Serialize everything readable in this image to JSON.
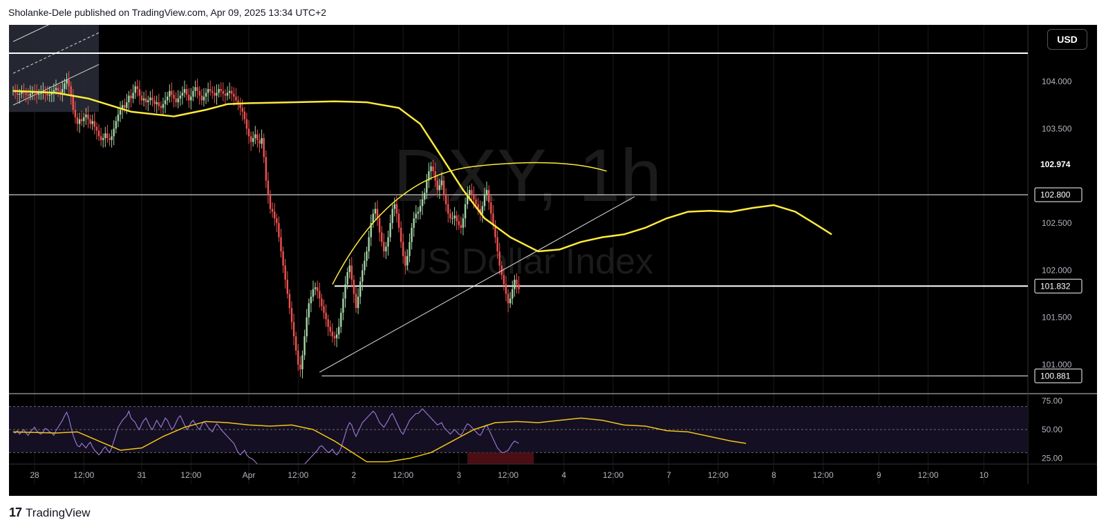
{
  "header": {
    "publisher_line": "Sholanke-Dele published on TradingView.com, Apr 09, 2025 13:34 UTC+2"
  },
  "currency_button": "USD",
  "watermark": {
    "symbol": "DXY, 1h",
    "name": "US Dollar Index"
  },
  "footer": {
    "logo_text": "TradingView"
  },
  "colors": {
    "background": "#000000",
    "candle_up": "#a5d6a7",
    "candle_down": "#ef5350",
    "moving_average": "#ffeb3b",
    "rsi_line": "#9575cd",
    "rsi_ma": "#f5c518",
    "level_line": "#ffffff"
  },
  "chart_data": [
    {
      "type": "candlestick",
      "symbol": "DXY",
      "interval": "1h",
      "y_ticks": [
        "104.000",
        "103.500",
        "102.500",
        "102.000",
        "101.500",
        "101.000"
      ],
      "y_range": [
        100.7,
        104.6
      ],
      "x_ticks": [
        {
          "label": "28",
          "index": 10
        },
        {
          "label": "12:00",
          "index": 33
        },
        {
          "label": "31",
          "index": 60
        },
        {
          "label": "12:00",
          "index": 83
        },
        {
          "label": "Apr",
          "index": 110
        },
        {
          "label": "12:00",
          "index": 133
        },
        {
          "label": "2",
          "index": 159
        },
        {
          "label": "12:00",
          "index": 182
        },
        {
          "label": "3",
          "index": 208
        },
        {
          "label": "12:00",
          "index": 231
        },
        {
          "label": "4",
          "index": 257
        },
        {
          "label": "12:00",
          "index": 280
        },
        {
          "label": "7",
          "index": 306
        },
        {
          "label": "12:00",
          "index": 329
        },
        {
          "label": "8",
          "index": 355
        },
        {
          "label": "12:00",
          "index": 378
        },
        {
          "label": "9",
          "index": 404
        },
        {
          "label": "12:00",
          "index": 427
        },
        {
          "label": "10",
          "index": 453
        }
      ],
      "price_labels": [
        {
          "value": 102.974,
          "text": "102.974",
          "boxed": false
        },
        {
          "value": 102.8,
          "text": "102.800",
          "boxed": true
        },
        {
          "value": 101.832,
          "text": "101.832",
          "boxed": true
        },
        {
          "value": 100.881,
          "text": "100.881",
          "boxed": true
        }
      ],
      "horizontal_levels": [
        104.3,
        102.8,
        101.832,
        100.881
      ],
      "close_series": [
        103.9,
        103.88,
        103.86,
        103.87,
        103.89,
        103.88,
        103.86,
        103.85,
        103.87,
        103.9,
        103.88,
        103.86,
        103.87,
        103.89,
        103.9,
        103.88,
        103.85,
        103.86,
        103.88,
        103.91,
        103.93,
        103.9,
        103.88,
        103.92,
        103.98,
        104.02,
        103.95,
        103.85,
        103.7,
        103.62,
        103.55,
        103.6,
        103.58,
        103.62,
        103.65,
        103.6,
        103.55,
        103.58,
        103.52,
        103.48,
        103.42,
        103.38,
        103.4,
        103.45,
        103.4,
        103.38,
        103.42,
        103.5,
        103.58,
        103.65,
        103.7,
        103.75,
        103.72,
        103.78,
        103.85,
        103.82,
        103.88,
        103.95,
        103.92,
        103.85,
        103.8,
        103.82,
        103.78,
        103.8,
        103.83,
        103.8,
        103.76,
        103.78,
        103.74,
        103.72,
        103.76,
        103.8,
        103.84,
        103.9,
        103.86,
        103.82,
        103.78,
        103.82,
        103.85,
        103.88,
        103.92,
        103.86,
        103.8,
        103.84,
        103.9,
        103.94,
        103.9,
        103.85,
        103.8,
        103.84,
        103.88,
        103.92,
        103.9,
        103.88,
        103.85,
        103.88,
        103.92,
        103.9,
        103.87,
        103.85,
        103.88,
        103.9,
        103.87,
        103.84,
        103.8,
        103.76,
        103.72,
        103.68,
        103.6,
        103.5,
        103.42,
        103.36,
        103.4,
        103.44,
        103.38,
        103.34,
        103.4,
        103.2,
        102.95,
        102.8,
        102.65,
        102.62,
        102.55,
        102.5,
        102.35,
        102.2,
        102.05,
        101.9,
        101.75,
        101.6,
        101.45,
        101.3,
        101.15,
        101.0,
        100.95,
        101.1,
        101.3,
        101.5,
        101.65,
        101.72,
        101.8,
        101.82,
        101.78,
        101.7,
        101.62,
        101.55,
        101.48,
        101.4,
        101.35,
        101.3,
        101.28,
        101.32,
        101.4,
        101.55,
        101.7,
        101.85,
        101.98,
        102.05,
        101.9,
        101.75,
        101.6,
        101.72,
        101.88,
        102.0,
        102.1,
        102.2,
        102.35,
        102.5,
        102.6,
        102.65,
        102.55,
        102.4,
        102.3,
        102.2,
        102.25,
        102.35,
        102.5,
        102.65,
        102.7,
        102.6,
        102.45,
        102.3,
        102.15,
        102.05,
        102.15,
        102.3,
        102.45,
        102.55,
        102.6,
        102.62,
        102.68,
        102.75,
        102.82,
        102.95,
        103.05,
        103.1,
        103.05,
        102.95,
        102.85,
        102.9,
        102.95,
        102.8,
        102.7,
        102.6,
        102.55,
        102.55,
        102.58,
        102.52,
        102.48,
        102.45,
        102.55,
        102.7,
        102.8,
        102.85,
        102.8,
        102.75,
        102.7,
        102.65,
        102.6,
        102.68,
        102.8,
        102.85,
        102.72,
        102.6,
        102.48,
        102.35,
        102.2,
        102.05,
        101.95,
        101.85,
        101.75,
        101.65,
        101.7,
        101.8,
        101.9,
        101.85,
        101.8
      ],
      "moving_average": {
        "name": "MA",
        "points": [
          [
            0,
            103.9
          ],
          [
            20,
            103.88
          ],
          [
            35,
            103.82
          ],
          [
            55,
            103.68
          ],
          [
            75,
            103.63
          ],
          [
            90,
            103.7
          ],
          [
            100,
            103.76
          ],
          [
            110,
            103.77
          ],
          [
            130,
            103.78
          ],
          [
            150,
            103.79
          ],
          [
            165,
            103.78
          ],
          [
            180,
            103.72
          ],
          [
            190,
            103.55
          ],
          [
            200,
            103.2
          ],
          [
            210,
            102.85
          ],
          [
            220,
            102.55
          ],
          [
            232,
            102.35
          ],
          [
            245,
            102.2
          ],
          [
            255,
            102.22
          ],
          [
            265,
            102.3
          ],
          [
            275,
            102.35
          ],
          [
            285,
            102.38
          ],
          [
            295,
            102.45
          ],
          [
            305,
            102.55
          ],
          [
            315,
            102.62
          ],
          [
            325,
            102.63
          ],
          [
            335,
            102.62
          ],
          [
            345,
            102.66
          ],
          [
            355,
            102.69
          ],
          [
            365,
            102.62
          ],
          [
            375,
            102.48
          ],
          [
            382,
            102.38
          ]
        ]
      },
      "annotations": {
        "arc": [
          [
            149,
            101.85
          ],
          [
            175,
            102.65
          ],
          [
            215,
            103.1
          ],
          [
            250,
            103.18
          ],
          [
            277,
            103.05
          ]
        ],
        "trendline": [
          [
            143,
            100.92
          ],
          [
            290,
            102.78
          ]
        ],
        "top_left_channel": [
          [
            0,
            103.75
          ],
          [
            40,
            104.18
          ]
        ]
      }
    },
    {
      "type": "line",
      "indicator": "RSI",
      "y_ticks": [
        "75.00",
        "50.00",
        "25.00"
      ],
      "y_range": [
        20,
        80
      ],
      "bands": [
        70,
        50,
        30
      ],
      "rsi_values": [
        48,
        47,
        49,
        46,
        48,
        50,
        47,
        45,
        48,
        50,
        52,
        49,
        47,
        46,
        48,
        51,
        50,
        48,
        47,
        45,
        49,
        52,
        55,
        58,
        62,
        65,
        60,
        52,
        45,
        40,
        36,
        35,
        38,
        36,
        34,
        37,
        39,
        35,
        32,
        30,
        28,
        30,
        33,
        35,
        32,
        30,
        34,
        40,
        46,
        52,
        55,
        58,
        60,
        62,
        66,
        60,
        58,
        56,
        52,
        50,
        55,
        58,
        60,
        56,
        52,
        50,
        54,
        58,
        55,
        52,
        56,
        60,
        58,
        54,
        50,
        52,
        56,
        60,
        62,
        58,
        54,
        50,
        52,
        56,
        58,
        55,
        52,
        50,
        54,
        57,
        55,
        52,
        50,
        48,
        52,
        55,
        53,
        50,
        48,
        46,
        44,
        42,
        40,
        38,
        34,
        30,
        28,
        30,
        32,
        28,
        26,
        25,
        24,
        22,
        20,
        20,
        20,
        20,
        20,
        20,
        20,
        20,
        20,
        20,
        20,
        20,
        20,
        20,
        20,
        20,
        20,
        20,
        20,
        20,
        20,
        20,
        20,
        22,
        24,
        26,
        28,
        30,
        32,
        35,
        36,
        34,
        32,
        30,
        31,
        33,
        30,
        28,
        30,
        34,
        40,
        46,
        52,
        56,
        54,
        48,
        44,
        48,
        52,
        56,
        58,
        60,
        62,
        64,
        66,
        64,
        60,
        56,
        54,
        52,
        55,
        58,
        62,
        64,
        60,
        56,
        52,
        48,
        46,
        50,
        54,
        58,
        60,
        62,
        64,
        64,
        66,
        68,
        66,
        64,
        62,
        60,
        58,
        56,
        54,
        55,
        56,
        52,
        50,
        48,
        46,
        48,
        50,
        48,
        46,
        45,
        48,
        52,
        55,
        54,
        52,
        50,
        48,
        46,
        45,
        48,
        52,
        54,
        50,
        46,
        42,
        38,
        34,
        32,
        30,
        30,
        31,
        32,
        35,
        38,
        40,
        39,
        38
      ],
      "rsi_ma_points": [
        [
          0,
          48
        ],
        [
          20,
          47
        ],
        [
          30,
          48
        ],
        [
          40,
          40
        ],
        [
          50,
          32
        ],
        [
          60,
          34
        ],
        [
          70,
          44
        ],
        [
          80,
          52
        ],
        [
          90,
          57
        ],
        [
          100,
          56
        ],
        [
          110,
          54
        ],
        [
          120,
          53
        ],
        [
          130,
          54
        ],
        [
          140,
          50
        ],
        [
          150,
          40
        ],
        [
          160,
          28
        ],
        [
          165,
          22
        ],
        [
          175,
          22
        ],
        [
          185,
          25
        ],
        [
          195,
          30
        ],
        [
          205,
          40
        ],
        [
          215,
          50
        ],
        [
          225,
          56
        ],
        [
          235,
          57
        ],
        [
          245,
          56
        ],
        [
          255,
          58
        ],
        [
          265,
          60
        ],
        [
          275,
          58
        ],
        [
          285,
          54
        ],
        [
          295,
          53
        ],
        [
          305,
          49
        ],
        [
          315,
          48
        ],
        [
          325,
          44
        ],
        [
          335,
          40
        ],
        [
          342,
          38
        ]
      ]
    }
  ]
}
